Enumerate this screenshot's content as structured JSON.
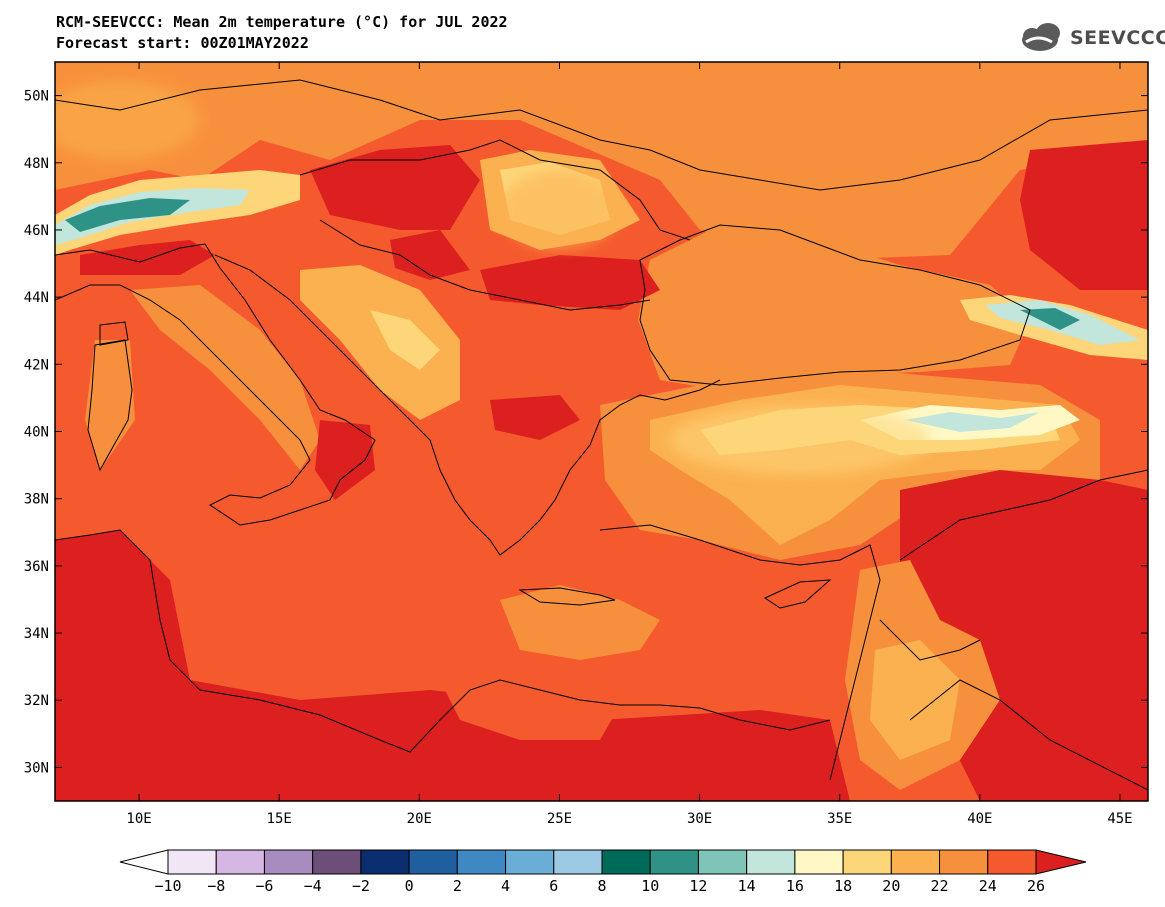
{
  "header": {
    "title_line1": "RCM-SEEVCCC: Mean 2m temperature (°C) for JUL 2022",
    "title_line2": "Forecast start: 00Z01MAY2022"
  },
  "logo": {
    "text": "SEEVCCC",
    "icon": "cloud-logo-icon"
  },
  "map": {
    "lon_range": [
      7,
      46
    ],
    "lat_range": [
      29,
      51
    ],
    "lon_ticks": [
      {
        "value": 10,
        "label": "10E"
      },
      {
        "value": 15,
        "label": "15E"
      },
      {
        "value": 20,
        "label": "20E"
      },
      {
        "value": 25,
        "label": "25E"
      },
      {
        "value": 30,
        "label": "30E"
      },
      {
        "value": 35,
        "label": "35E"
      },
      {
        "value": 40,
        "label": "40E"
      },
      {
        "value": 45,
        "label": "45E"
      }
    ],
    "lat_ticks": [
      {
        "value": 30,
        "label": "30N"
      },
      {
        "value": 32,
        "label": "32N"
      },
      {
        "value": 34,
        "label": "34N"
      },
      {
        "value": 36,
        "label": "36N"
      },
      {
        "value": 38,
        "label": "38N"
      },
      {
        "value": 40,
        "label": "40N"
      },
      {
        "value": 42,
        "label": "42N"
      },
      {
        "value": 44,
        "label": "44N"
      },
      {
        "value": 46,
        "label": "46N"
      },
      {
        "value": 48,
        "label": "48N"
      },
      {
        "value": 50,
        "label": "50N"
      }
    ]
  },
  "colorbar": {
    "labels": [
      "−10",
      "−8",
      "−6",
      "−4",
      "−2",
      "0",
      "2",
      "4",
      "6",
      "8",
      "10",
      "12",
      "14",
      "16",
      "18",
      "20",
      "22",
      "24",
      "26"
    ],
    "colors": {
      "below_min": "#ffffff",
      "bins": [
        "#f0e6f5",
        "#d6b6e2",
        "#a88bbf",
        "#6c4e78",
        "#0a2d6e",
        "#1f5fa0",
        "#3e89c4",
        "#6aaed8",
        "#9cc9e3",
        "#006a59",
        "#2e9386",
        "#7ec5b8",
        "#c2e6dc",
        "#fff8c4",
        "#fdd67a",
        "#fbb150",
        "#f7903c",
        "#f45a2e"
      ],
      "above_max": "#dc1f1f"
    }
  }
}
